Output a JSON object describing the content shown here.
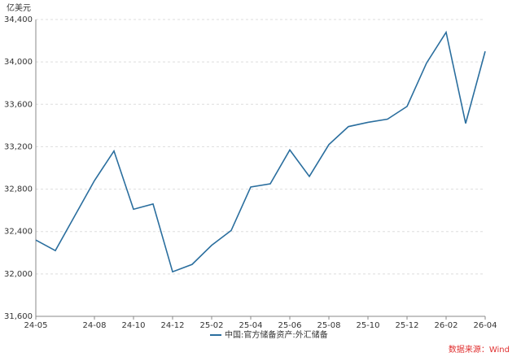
{
  "chart_data": {
    "type": "line",
    "y_unit": "亿美元",
    "source": "数据来源：Wind",
    "categories": [
      "24-05",
      null,
      null,
      "24-08",
      null,
      "24-10",
      null,
      "24-12",
      null,
      "25-02",
      null,
      "25-04",
      null,
      "25-06",
      null,
      "25-08",
      null,
      "25-10",
      null,
      "25-12",
      null,
      "26-02",
      null,
      "26-04"
    ],
    "series": [
      {
        "name": "中国:官方储备资产:外汇储备",
        "color": "#2a6e9e",
        "values": [
          32320,
          32220,
          32550,
          32880,
          33160,
          32610,
          32660,
          32020,
          32090,
          32270,
          32410,
          32820,
          32850,
          33170,
          32920,
          33220,
          33390,
          33430,
          33460,
          33580,
          33990,
          34280,
          33420,
          34100
        ]
      }
    ],
    "ylim": [
      31600,
      34400
    ],
    "yticks": [
      {
        "value": 31600,
        "label": "31,600"
      },
      {
        "value": 32000,
        "label": "32,000"
      },
      {
        "value": 32400,
        "label": "32,400"
      },
      {
        "value": 32800,
        "label": "32,800"
      },
      {
        "value": 33200,
        "label": "33,200"
      },
      {
        "value": 33600,
        "label": "33,600"
      },
      {
        "value": 34000,
        "label": "34,000"
      },
      {
        "value": 34400,
        "label": "34,400"
      }
    ],
    "grid": true
  }
}
